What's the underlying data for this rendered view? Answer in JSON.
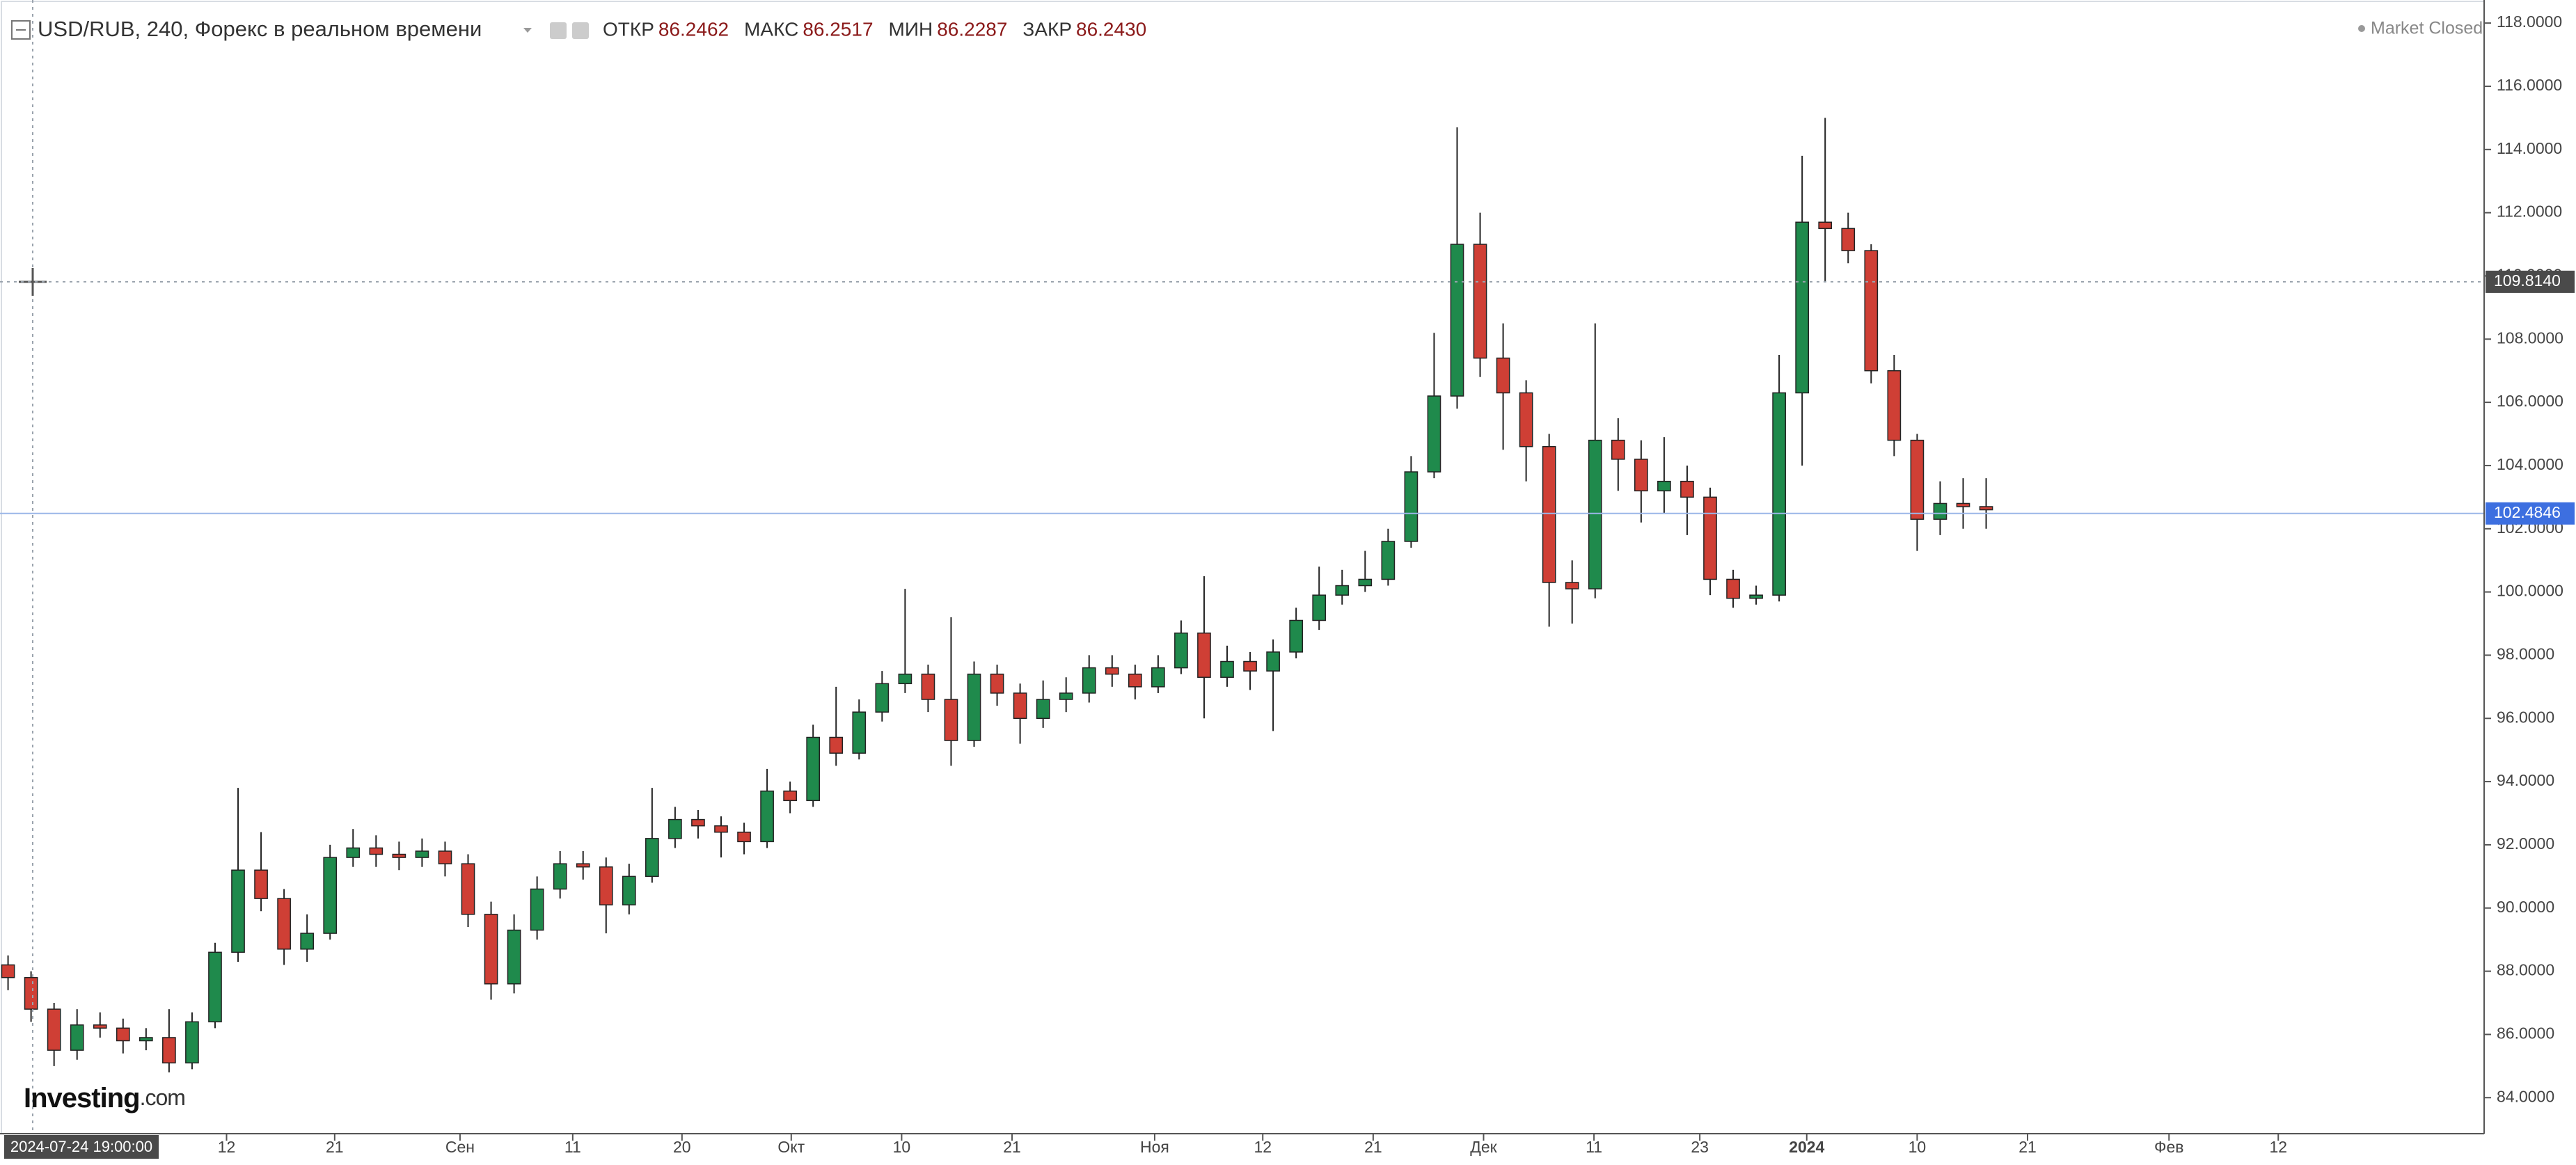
{
  "chart_data": {
    "type": "candlestick",
    "title": "USD/RUB, 240, Форекс в реальном времени",
    "ohlc_header": [
      {
        "label": "ОТКР",
        "value": 86.2462,
        "value_label": "86.2462"
      },
      {
        "label": "МАКС",
        "value": 86.2517,
        "value_label": "86.2517"
      },
      {
        "label": "МИН",
        "value": 86.2287,
        "value_label": "86.2287"
      },
      {
        "label": "ЗАКР",
        "value": 86.243,
        "value_label": "86.2430"
      }
    ],
    "status": "Market Closed",
    "logo": {
      "name": "Investing",
      "suffix": ".com"
    },
    "crosshair": {
      "x_label": "2024-07-24 19:00:00",
      "price": {
        "value": 109.814,
        "label": "109.8140"
      }
    },
    "last_price": {
      "value": 102.4846,
      "label": "102.4846"
    },
    "up_color": "#1f8a4c",
    "down_color": "#cf3f35",
    "x": [
      0,
      2,
      4,
      6,
      8,
      10,
      12,
      14,
      16,
      18,
      20,
      22,
      24,
      26,
      28,
      30,
      32,
      34,
      36,
      38,
      40,
      42,
      44,
      46,
      48,
      50,
      52,
      54,
      56,
      58,
      60,
      62,
      64,
      66,
      68,
      70,
      72,
      74,
      76,
      78,
      80,
      82,
      84,
      86,
      88,
      90,
      92,
      94,
      96,
      98,
      100,
      102,
      104,
      106,
      108,
      110,
      112,
      114,
      116,
      118,
      120,
      122,
      124,
      126,
      128,
      130,
      132,
      134,
      136,
      138,
      140,
      142,
      144,
      146,
      148,
      150,
      152,
      154,
      156,
      158,
      160,
      162,
      164,
      166,
      168,
      170,
      172
    ],
    "open": [
      88.2,
      87.8,
      86.8,
      85.5,
      86.3,
      86.2,
      85.8,
      85.9,
      85.1,
      86.4,
      88.6,
      91.2,
      90.3,
      88.7,
      89.2,
      91.6,
      91.9,
      91.7,
      91.6,
      91.8,
      91.4,
      89.8,
      87.6,
      89.3,
      90.6,
      91.4,
      91.3,
      90.1,
      91.0,
      92.2,
      92.8,
      92.6,
      92.4,
      92.1,
      93.7,
      93.4,
      95.4,
      94.9,
      96.2,
      97.1,
      97.4,
      96.6,
      95.3,
      97.4,
      96.8,
      96.0,
      96.6,
      96.8,
      97.6,
      97.4,
      97.0,
      97.6,
      98.7,
      97.3,
      97.8,
      97.5,
      98.1,
      99.1,
      99.9,
      100.2,
      100.4,
      101.6,
      103.8,
      106.2,
      111.0,
      107.4,
      106.3,
      104.6,
      100.3,
      100.1,
      104.8,
      104.2,
      103.2,
      103.5,
      103.0,
      100.4,
      99.8,
      99.9,
      106.3,
      111.7,
      111.5,
      110.8,
      107.0,
      104.8,
      102.3,
      102.8,
      102.7
    ],
    "high": [
      88.5,
      88.0,
      87.0,
      86.8,
      86.7,
      86.5,
      86.2,
      86.8,
      86.7,
      88.9,
      93.8,
      92.4,
      90.6,
      89.8,
      92.0,
      92.5,
      92.3,
      92.1,
      92.2,
      92.1,
      91.7,
      90.2,
      89.8,
      91.0,
      91.8,
      91.8,
      91.6,
      91.4,
      93.8,
      93.2,
      93.1,
      92.9,
      92.7,
      94.4,
      94.0,
      95.8,
      97.0,
      96.6,
      97.5,
      100.1,
      97.7,
      99.2,
      97.8,
      97.7,
      97.1,
      97.2,
      97.3,
      98.0,
      98.0,
      97.7,
      98.0,
      99.1,
      100.5,
      98.3,
      98.1,
      98.5,
      99.5,
      100.8,
      100.7,
      101.3,
      102.0,
      104.3,
      108.2,
      114.7,
      112.0,
      108.5,
      106.7,
      105.0,
      101.0,
      108.5,
      105.5,
      104.8,
      104.9,
      104.0,
      103.3,
      100.7,
      100.2,
      107.5,
      113.8,
      115.0,
      112.0,
      111.0,
      107.5,
      105.0,
      103.5,
      103.6,
      103.6
    ],
    "low": [
      87.4,
      86.4,
      85.0,
      85.2,
      85.9,
      85.4,
      85.5,
      84.8,
      84.9,
      86.2,
      88.3,
      89.9,
      88.2,
      88.3,
      89.0,
      91.3,
      91.3,
      91.2,
      91.3,
      91.0,
      89.4,
      87.1,
      87.3,
      89.0,
      90.3,
      90.9,
      89.2,
      89.8,
      90.8,
      91.9,
      92.2,
      91.6,
      91.7,
      91.9,
      93.0,
      93.2,
      94.5,
      94.7,
      95.9,
      96.8,
      96.2,
      94.5,
      95.1,
      96.4,
      95.2,
      95.7,
      96.2,
      96.5,
      97.0,
      96.6,
      96.8,
      97.4,
      96.0,
      97.0,
      96.9,
      95.6,
      97.9,
      98.8,
      99.6,
      100.0,
      100.2,
      101.4,
      103.6,
      105.8,
      106.8,
      104.5,
      103.5,
      98.9,
      99.0,
      99.8,
      103.2,
      102.2,
      102.5,
      101.8,
      99.9,
      99.5,
      99.6,
      99.7,
      104.0,
      109.8,
      110.4,
      106.6,
      104.3,
      101.3,
      101.8,
      102.0,
      102.0
    ],
    "close": [
      87.8,
      86.8,
      85.5,
      86.3,
      86.2,
      85.8,
      85.9,
      85.1,
      86.4,
      88.6,
      91.2,
      90.3,
      88.7,
      89.2,
      91.6,
      91.9,
      91.7,
      91.6,
      91.8,
      91.4,
      89.8,
      87.6,
      89.3,
      90.6,
      91.4,
      91.3,
      90.1,
      91.0,
      92.2,
      92.8,
      92.6,
      92.4,
      92.1,
      93.7,
      93.4,
      95.4,
      94.9,
      96.2,
      97.1,
      97.4,
      96.6,
      95.3,
      97.4,
      96.8,
      96.0,
      96.6,
      96.8,
      97.6,
      97.4,
      97.0,
      97.6,
      98.7,
      97.3,
      97.8,
      97.5,
      98.1,
      99.1,
      99.9,
      100.2,
      100.4,
      101.6,
      103.8,
      106.2,
      111.0,
      107.4,
      106.3,
      104.6,
      100.3,
      100.1,
      104.8,
      104.2,
      103.2,
      103.5,
      103.0,
      100.4,
      99.8,
      99.9,
      106.3,
      111.7,
      111.5,
      110.8,
      107.0,
      104.8,
      102.3,
      102.8,
      102.7,
      102.6
    ],
    "xlim": [
      -0.7,
      215.3
    ],
    "xticks": [
      {
        "value": 19,
        "label": "12"
      },
      {
        "value": 28.4,
        "label": "21"
      },
      {
        "value": 39.3,
        "label": "Сен"
      },
      {
        "value": 49.1,
        "label": "11"
      },
      {
        "value": 58.6,
        "label": "20"
      },
      {
        "value": 68.1,
        "label": "Окт"
      },
      {
        "value": 77.7,
        "label": "10"
      },
      {
        "value": 87.3,
        "label": "21"
      },
      {
        "value": 99.7,
        "label": "Ноя"
      },
      {
        "value": 109.1,
        "label": "12"
      },
      {
        "value": 118.7,
        "label": "21"
      },
      {
        "value": 128.3,
        "label": "Дек"
      },
      {
        "value": 137.9,
        "label": "11"
      },
      {
        "value": 147.1,
        "label": "23"
      },
      {
        "value": 156.4,
        "label": "2024",
        "bold": true
      },
      {
        "value": 166,
        "label": "10"
      },
      {
        "value": 175.6,
        "label": "21"
      },
      {
        "value": 187.9,
        "label": "Фев"
      },
      {
        "value": 197.4,
        "label": "12"
      }
    ],
    "ylim": [
      82.86,
      118.73
    ],
    "yticks": [
      {
        "value": 84,
        "label": "84.0000"
      },
      {
        "value": 86,
        "label": "86.0000"
      },
      {
        "value": 88,
        "label": "88.0000"
      },
      {
        "value": 90,
        "label": "90.0000"
      },
      {
        "value": 92,
        "label": "92.0000"
      },
      {
        "value": 94,
        "label": "94.0000"
      },
      {
        "value": 96,
        "label": "96.0000"
      },
      {
        "value": 98,
        "label": "98.0000"
      },
      {
        "value": 100,
        "label": "100.0000"
      },
      {
        "value": 102,
        "label": "102.0000"
      },
      {
        "value": 104,
        "label": "104.0000"
      },
      {
        "value": 106,
        "label": "106.0000"
      },
      {
        "value": 108,
        "label": "108.0000"
      },
      {
        "value": 110,
        "label": "110.0000"
      },
      {
        "value": 112,
        "label": "112.0000"
      },
      {
        "value": 114,
        "label": "114.0000"
      },
      {
        "value": 116,
        "label": "116.0000"
      },
      {
        "value": 118,
        "label": "118.0000"
      }
    ]
  }
}
